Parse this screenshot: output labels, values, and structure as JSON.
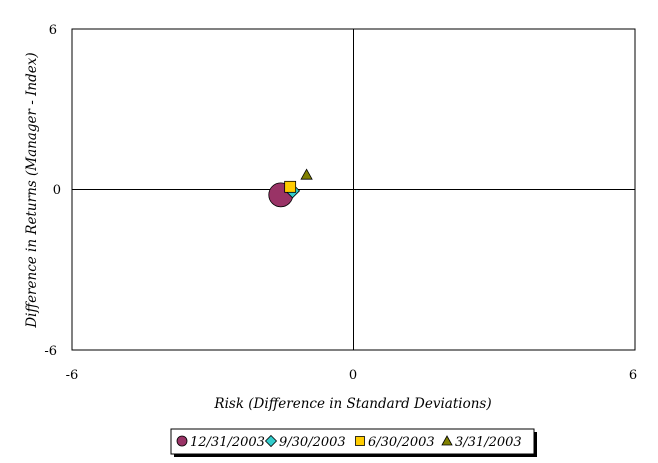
{
  "chart_data": {
    "type": "scatter",
    "title": "",
    "xlabel": "Risk (Difference in Standard Deviations)",
    "ylabel": "Difference in Returns (Manager - Index)",
    "xlim": [
      -6,
      6
    ],
    "ylim": [
      -6,
      6
    ],
    "x_ticks": [
      "-6",
      "0",
      "6"
    ],
    "y_ticks": [
      "6",
      "0",
      "-6"
    ],
    "grid": false,
    "quadrant_lines": true,
    "legend_position": "bottom",
    "series": [
      {
        "name": "12/31/2003",
        "marker": "circle",
        "color": "#993366",
        "x": -1.55,
        "y": -0.2
      },
      {
        "name": "9/30/2003",
        "marker": "diamond",
        "color": "#33CCCC",
        "x": -1.3,
        "y": -0.05
      },
      {
        "name": "6/30/2003",
        "marker": "square",
        "color": "#FFCC00",
        "x": -1.35,
        "y": 0.1
      },
      {
        "name": "3/31/2003",
        "marker": "triangle",
        "color": "#808000",
        "x": -1.0,
        "y": 0.55
      }
    ]
  }
}
